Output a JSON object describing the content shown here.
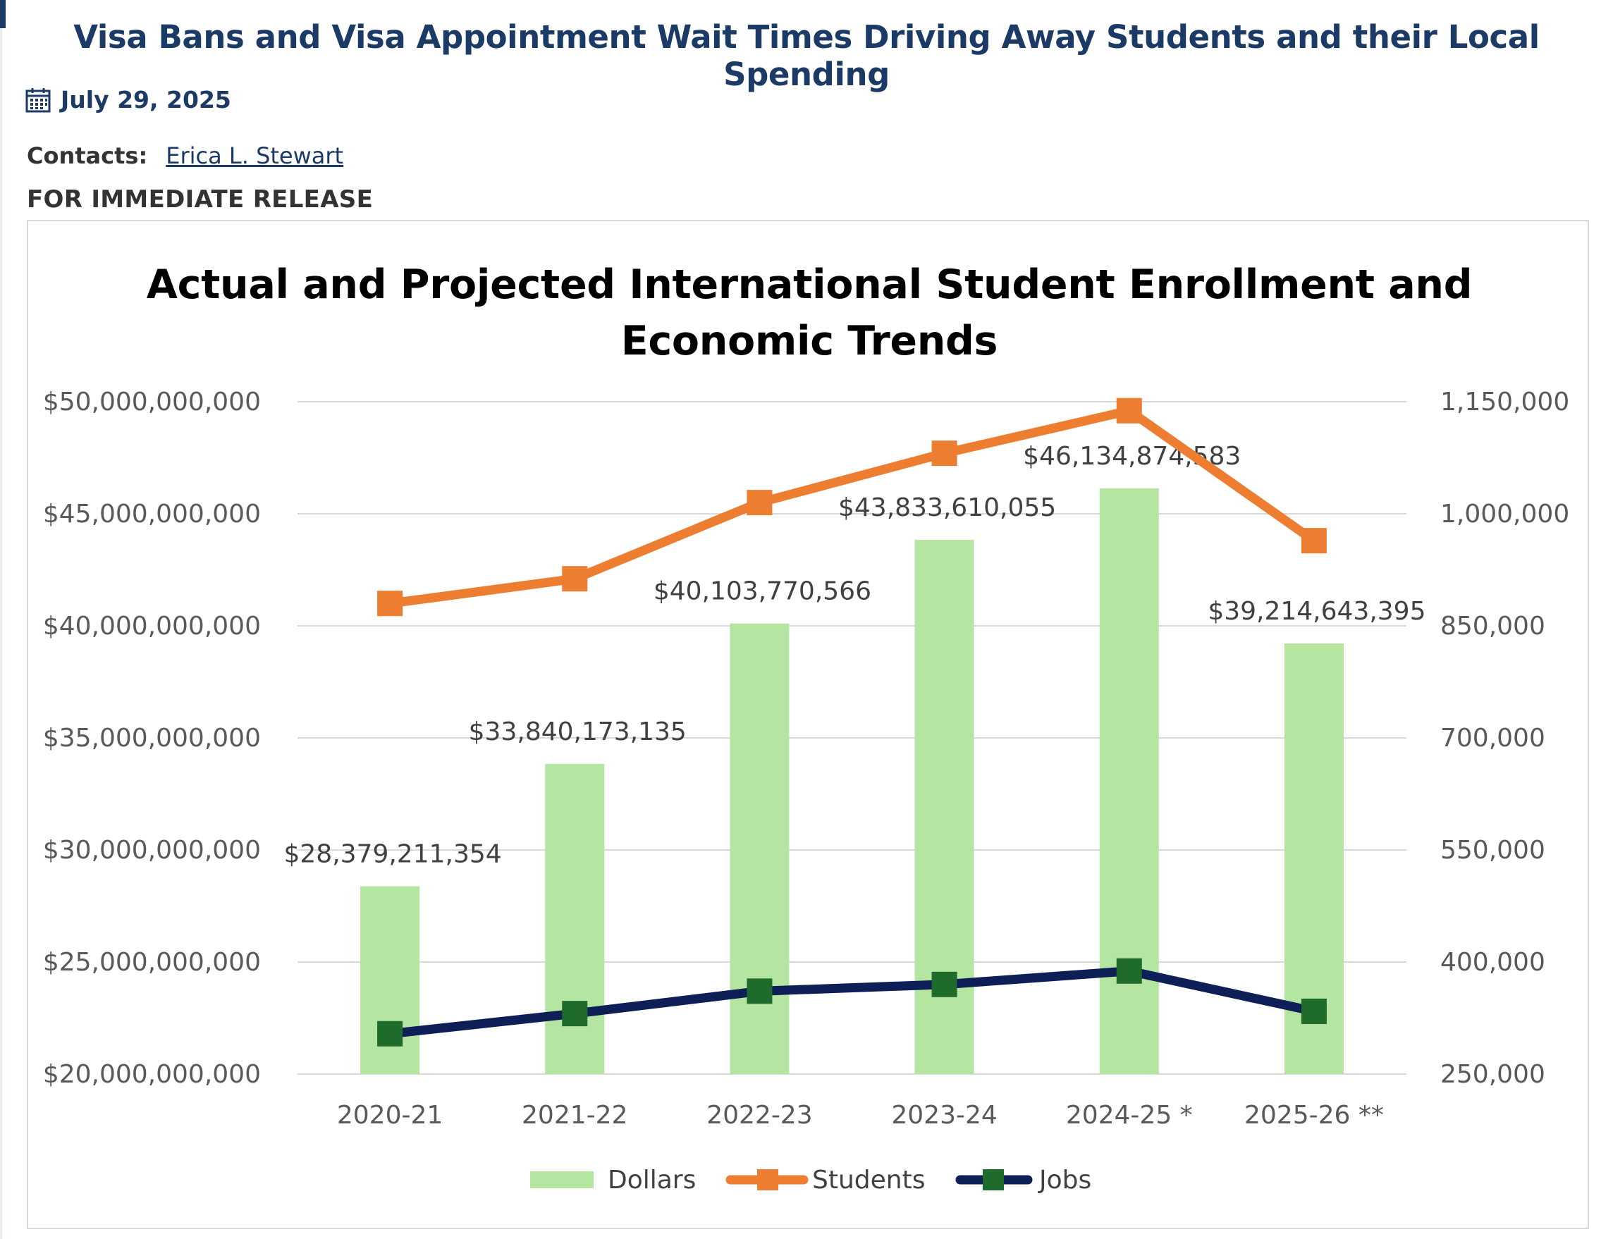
{
  "page": {
    "headline": "Visa Bans and Visa Appointment Wait Times Driving Away Students and their Local Spending",
    "date": "July 29, 2025",
    "contacts_label": "Contacts:",
    "contact_name": "Erica L. Stewart",
    "release_label": "FOR IMMEDIATE RELEASE"
  },
  "icons": {
    "date": "calendar-icon"
  },
  "colors": {
    "headline": "#1c3a66",
    "dollars_bar": "#b4e5a1",
    "students_line": "#ed7d31",
    "jobs_line": "#0d1f56",
    "jobs_marker": "#1e6b2b"
  },
  "chart_data": {
    "type": "bar+line",
    "title_line1": "Actual and Projected International Student Enrollment and",
    "title_line2": "Economic Trends",
    "categories": [
      "2020-21",
      "2021-22",
      "2022-23",
      "2023-24",
      "2024-25 *",
      "2025-26 **"
    ],
    "left_axis": {
      "min": 20000000000,
      "max": 50000000000,
      "step": 5000000000,
      "ticks": [
        "$20,000,000,000",
        "$25,000,000,000",
        "$30,000,000,000",
        "$35,000,000,000",
        "$40,000,000,000",
        "$45,000,000,000",
        "$50,000,000,000"
      ]
    },
    "right_axis": {
      "min": 250000,
      "max": 1150000,
      "tick_values": [
        250000,
        400000,
        550000,
        700000,
        850000,
        1000000,
        1150000
      ],
      "ticks": [
        "250,000",
        "400,000",
        "550,000",
        "700,000",
        "850,000",
        "1,000,000",
        "1,150,000"
      ]
    },
    "grid": true,
    "legend_position": "bottom",
    "series": [
      {
        "name": "Dollars",
        "type": "bar",
        "axis": "left",
        "values": [
          28379211354,
          33840173135,
          40103770566,
          43833610055,
          46134874583,
          39214643395
        ],
        "labels": [
          "$28,379,211,354",
          "$33,840,173,135",
          "$40,103,770,566",
          "$43,833,610,055",
          "$46,134,874,583",
          "$39,214,643,395"
        ]
      },
      {
        "name": "Students",
        "type": "line",
        "axis": "left",
        "values": [
          41000000000,
          42100000000,
          45500000000,
          47700000000,
          49600000000,
          43800000000
        ]
      },
      {
        "name": "Jobs",
        "type": "line",
        "axis": "left",
        "values": [
          21800000000,
          22700000000,
          23700000000,
          24000000000,
          24600000000,
          22800000000
        ]
      }
    ]
  }
}
